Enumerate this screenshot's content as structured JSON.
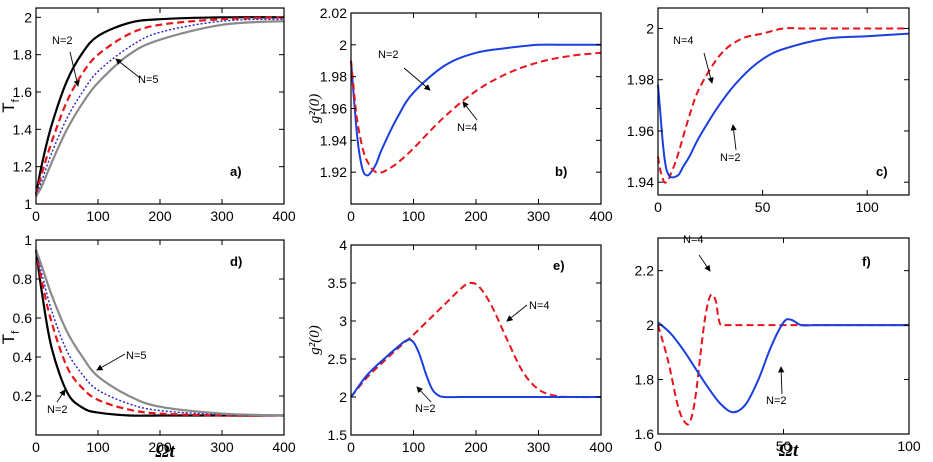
{
  "chart_data": [
    {
      "id": "a",
      "type": "line",
      "panel_label": "a)",
      "ylabel": "T",
      "ylabel_sub": "f",
      "xlabel": "",
      "xlim": [
        0,
        400
      ],
      "ylim": [
        1,
        2.05
      ],
      "xticks": [
        0,
        100,
        200,
        300,
        400
      ],
      "yticks": [
        1,
        1.2,
        1.4,
        1.6,
        1.8,
        2
      ],
      "ytick_labels": [
        "1",
        "1.2",
        "1.4",
        "1.6",
        "1.8",
        "2"
      ],
      "series": [
        {
          "color": "#000000",
          "dash": "solid",
          "width": 2.2,
          "x": [
            0,
            10,
            25,
            50,
            75,
            100,
            150,
            200,
            300,
            400
          ],
          "y": [
            1.05,
            1.22,
            1.42,
            1.66,
            1.81,
            1.9,
            1.97,
            1.99,
            2.0,
            2.0
          ]
        },
        {
          "color": "#e8141c",
          "dash": "dashed",
          "width": 2.2,
          "x": [
            0,
            10,
            25,
            50,
            75,
            100,
            150,
            200,
            300,
            400
          ],
          "y": [
            1.05,
            1.17,
            1.33,
            1.55,
            1.7,
            1.8,
            1.91,
            1.96,
            1.99,
            2.0
          ]
        },
        {
          "color": "#2020c8",
          "dash": "dotted",
          "width": 1.4,
          "x": [
            0,
            10,
            25,
            50,
            75,
            100,
            150,
            200,
            300,
            400
          ],
          "y": [
            1.04,
            1.13,
            1.27,
            1.46,
            1.6,
            1.71,
            1.84,
            1.92,
            1.98,
            1.99
          ]
        },
        {
          "color": "#8a8a8a",
          "dash": "solid",
          "width": 2.2,
          "x": [
            0,
            10,
            25,
            50,
            75,
            100,
            150,
            200,
            300,
            400
          ],
          "y": [
            1.04,
            1.1,
            1.22,
            1.4,
            1.54,
            1.65,
            1.8,
            1.88,
            1.96,
            1.98
          ]
        }
      ],
      "annotations": [
        {
          "text": "N=2",
          "x": 32,
          "y": 1.9
        },
        {
          "text": "N=5",
          "x": 150,
          "y": 1.68
        }
      ]
    },
    {
      "id": "b",
      "type": "line",
      "panel_label": "b)",
      "ylabel": "g²(0)",
      "xlabel": "",
      "xlim": [
        0,
        400
      ],
      "ylim": [
        1.9,
        2.02
      ],
      "xticks": [
        0,
        100,
        200,
        300,
        400
      ],
      "yticks": [
        1.92,
        1.94,
        1.96,
        1.98,
        2.0,
        2.02
      ],
      "ytick_labels": [
        "1.92",
        "1.94",
        "1.96",
        "1.98",
        "2",
        "2.02"
      ],
      "series": [
        {
          "name": "N=2",
          "color": "#1a3fe0",
          "dash": "solid",
          "width": 2.0,
          "x": [
            0,
            5,
            10,
            15,
            20,
            25,
            30,
            40,
            50,
            75,
            100,
            150,
            200,
            250,
            300,
            350,
            400
          ],
          "y": [
            1.99,
            1.965,
            1.942,
            1.928,
            1.92,
            1.918,
            1.919,
            1.925,
            1.935,
            1.955,
            1.97,
            1.987,
            1.995,
            1.998,
            2.0,
            2.0,
            2.0
          ]
        },
        {
          "name": "N=4",
          "color": "#e8141c",
          "dash": "dashed",
          "width": 2.0,
          "x": [
            0,
            5,
            10,
            20,
            30,
            40,
            50,
            60,
            75,
            100,
            150,
            200,
            250,
            300,
            350,
            400
          ],
          "y": [
            1.99,
            1.97,
            1.952,
            1.933,
            1.924,
            1.92,
            1.92,
            1.922,
            1.926,
            1.935,
            1.955,
            1.971,
            1.982,
            1.989,
            1.993,
            1.995
          ]
        }
      ],
      "annotations": [
        {
          "text": "N=2",
          "x": 55,
          "y": 1.988
        },
        {
          "text": "N=4",
          "x": 195,
          "y": 1.943
        }
      ]
    },
    {
      "id": "c",
      "type": "line",
      "panel_label": "c)",
      "ylabel": "",
      "xlabel": "",
      "xlim": [
        0,
        120
      ],
      "ylim": [
        1.935,
        2.008
      ],
      "xticks": [
        0,
        50,
        100
      ],
      "yticks": [
        1.94,
        1.96,
        1.98,
        2.0
      ],
      "ytick_labels": [
        "1.94",
        "1.96",
        "1.98",
        "2"
      ],
      "series": [
        {
          "name": "N=4",
          "color": "#e8141c",
          "dash": "dashed",
          "width": 2.0,
          "x": [
            0,
            1,
            2,
            3,
            4,
            5,
            6,
            8,
            10,
            15,
            20,
            30,
            40,
            50,
            60,
            70,
            80,
            100,
            120
          ],
          "y": [
            1.95,
            1.945,
            1.942,
            1.94,
            1.94,
            1.941,
            1.943,
            1.947,
            1.952,
            1.966,
            1.977,
            1.99,
            1.996,
            1.998,
            2.0,
            2.0,
            2.0,
            2.0,
            2.0
          ]
        },
        {
          "name": "N=2",
          "color": "#1a3fe0",
          "dash": "solid",
          "width": 2.0,
          "x": [
            0,
            1,
            2,
            3,
            4,
            5,
            6,
            8,
            10,
            12,
            15,
            20,
            30,
            40,
            50,
            60,
            80,
            100,
            120
          ],
          "y": [
            1.978,
            1.968,
            1.958,
            1.95,
            1.945,
            1.943,
            1.942,
            1.942,
            1.943,
            1.946,
            1.95,
            1.958,
            1.971,
            1.981,
            1.988,
            1.992,
            1.996,
            1.997,
            1.998
          ]
        }
      ],
      "annotations": [
        {
          "text": "N=4",
          "x": 8,
          "y": 1.995
        },
        {
          "text": "N=2",
          "x": 29,
          "y": 1.949
        }
      ]
    },
    {
      "id": "d",
      "type": "line",
      "panel_label": "d)",
      "ylabel": "T",
      "ylabel_sub": "f",
      "xlabel": "Ωt",
      "xlim": [
        0,
        400
      ],
      "ylim": [
        0,
        1
      ],
      "xticks": [
        0,
        100,
        200,
        300,
        400
      ],
      "yticks": [
        0.2,
        0.4,
        0.6,
        0.8,
        1.0
      ],
      "ytick_labels": [
        "0.2",
        "0.4",
        "0.6",
        "0.8",
        "1"
      ],
      "series": [
        {
          "color": "#000000",
          "dash": "solid",
          "width": 2.2,
          "x": [
            0,
            10,
            25,
            50,
            75,
            100,
            150,
            200,
            300,
            400
          ],
          "y": [
            0.95,
            0.72,
            0.45,
            0.22,
            0.14,
            0.115,
            0.1,
            0.1,
            0.1,
            0.1
          ]
        },
        {
          "color": "#e8141c",
          "dash": "dashed",
          "width": 2.2,
          "x": [
            0,
            10,
            25,
            50,
            75,
            100,
            150,
            200,
            300,
            400
          ],
          "y": [
            0.95,
            0.78,
            0.58,
            0.35,
            0.24,
            0.18,
            0.13,
            0.11,
            0.1,
            0.1
          ]
        },
        {
          "color": "#2020c8",
          "dash": "dotted",
          "width": 1.4,
          "x": [
            0,
            10,
            25,
            50,
            75,
            100,
            150,
            200,
            300,
            400
          ],
          "y": [
            0.95,
            0.82,
            0.64,
            0.43,
            0.31,
            0.23,
            0.16,
            0.125,
            0.105,
            0.1
          ]
        },
        {
          "color": "#8a8a8a",
          "dash": "solid",
          "width": 2.2,
          "x": [
            0,
            10,
            25,
            50,
            75,
            100,
            150,
            200,
            300,
            400
          ],
          "y": [
            0.95,
            0.86,
            0.72,
            0.53,
            0.4,
            0.3,
            0.2,
            0.145,
            0.11,
            0.1
          ]
        }
      ],
      "annotations": [
        {
          "text": "N=5",
          "x": 150,
          "y": 0.33
        },
        {
          "text": "N=2",
          "x": 25,
          "y": 0.06
        }
      ]
    },
    {
      "id": "e",
      "type": "line",
      "panel_label": "e)",
      "ylabel": "g²(0)",
      "xlabel": "",
      "xlim": [
        0,
        400
      ],
      "ylim": [
        1.5,
        4
      ],
      "xticks": [
        0,
        100,
        200,
        300,
        400
      ],
      "yticks": [
        1.5,
        2,
        2.5,
        3,
        3.5,
        4
      ],
      "ytick_labels": [
        "1.5",
        "2",
        "2.5",
        "3",
        "3.5",
        "4"
      ],
      "series": [
        {
          "name": "N=4",
          "color": "#e8141c",
          "dash": "dashed",
          "width": 2.0,
          "x": [
            0,
            25,
            50,
            75,
            100,
            125,
            150,
            175,
            190,
            205,
            225,
            250,
            275,
            300,
            325,
            350,
            400
          ],
          "y": [
            2.0,
            2.25,
            2.45,
            2.64,
            2.82,
            3.02,
            3.22,
            3.42,
            3.5,
            3.45,
            3.2,
            2.75,
            2.33,
            2.1,
            2.02,
            2.0,
            2.0
          ]
        },
        {
          "name": "N=2",
          "color": "#1a3fe0",
          "dash": "solid",
          "width": 2.0,
          "x": [
            0,
            25,
            50,
            75,
            90,
            100,
            110,
            120,
            130,
            140,
            150,
            175,
            200,
            300,
            400
          ],
          "y": [
            2.0,
            2.28,
            2.48,
            2.66,
            2.75,
            2.72,
            2.55,
            2.3,
            2.1,
            2.02,
            2.0,
            2.0,
            2.0,
            2.0,
            2.0
          ]
        }
      ],
      "annotations": [
        {
          "text": "N=4",
          "x": 255,
          "y": 3.4
        },
        {
          "text": "N=2",
          "x": 80,
          "y": 1.77
        }
      ]
    },
    {
      "id": "f",
      "type": "line",
      "panel_label": "f)",
      "ylabel": "",
      "xlabel": "Ωt",
      "xlim": [
        0,
        100
      ],
      "ylim": [
        1.6,
        2.32
      ],
      "xticks": [
        0,
        50,
        100
      ],
      "yticks": [
        1.6,
        1.8,
        2.0,
        2.2
      ],
      "ytick_labels": [
        "1.6",
        "1.8",
        "2",
        "2.2"
      ],
      "series": [
        {
          "name": "N=4",
          "color": "#e8141c",
          "dash": "dashed",
          "width": 2.0,
          "x": [
            0,
            4,
            8,
            11,
            13,
            15,
            17,
            19,
            21,
            23,
            24,
            25,
            27,
            30,
            40,
            60,
            100
          ],
          "y": [
            2.0,
            1.87,
            1.7,
            1.64,
            1.65,
            1.74,
            1.9,
            2.04,
            2.11,
            2.09,
            2.03,
            2.0,
            2.0,
            2.0,
            2.0,
            2.0,
            2.0
          ]
        },
        {
          "name": "N=2",
          "color": "#1a3fe0",
          "dash": "solid",
          "width": 2.0,
          "x": [
            0,
            5,
            10,
            15,
            20,
            25,
            30,
            35,
            40,
            45,
            50,
            53,
            57,
            62,
            70,
            100
          ],
          "y": [
            2.01,
            1.97,
            1.91,
            1.84,
            1.77,
            1.71,
            1.68,
            1.71,
            1.8,
            1.92,
            2.01,
            2.02,
            2.0,
            2.0,
            2.0,
            2.0
          ]
        }
      ],
      "annotations": [
        {
          "text": "N=4",
          "x": 11,
          "y": 2.21
        },
        {
          "text": "N=2",
          "x": 48,
          "y": 1.68
        }
      ]
    }
  ]
}
